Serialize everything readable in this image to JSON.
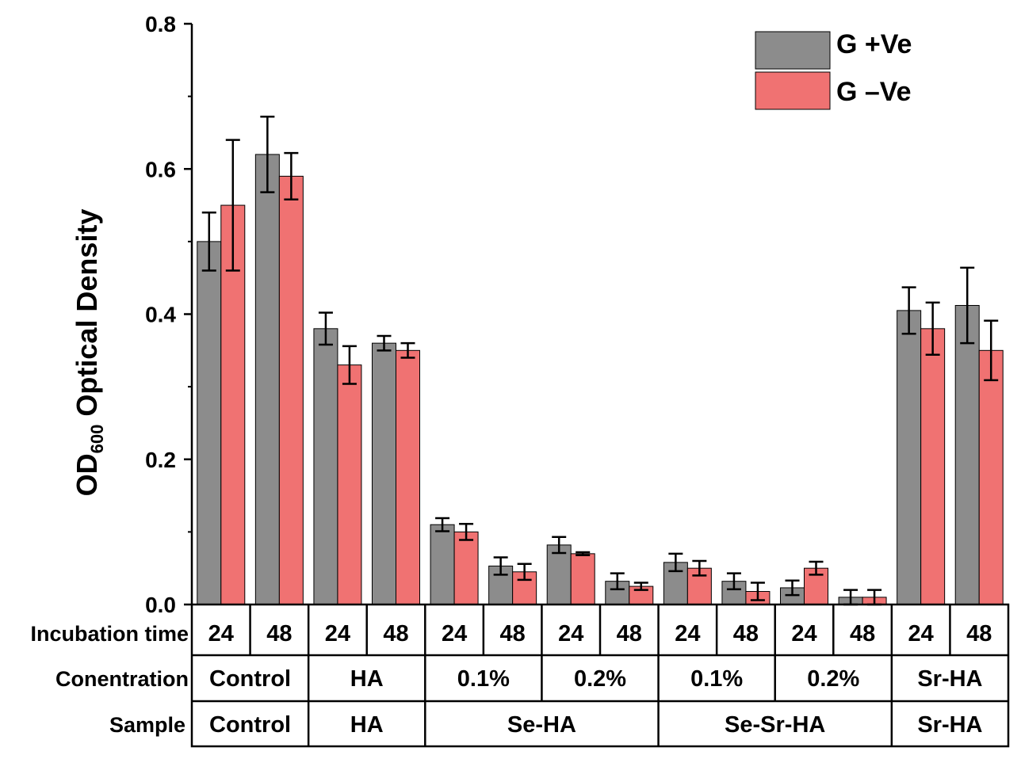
{
  "chart_data": {
    "type": "bar",
    "ylabel": "OD600 Optical Density",
    "ylabel_parts": {
      "main": "OD",
      "sub": "600",
      "rest": " Optical Density"
    },
    "ylim": [
      0,
      0.8
    ],
    "yticks": [
      "0.0",
      "0.2",
      "0.4",
      "0.6",
      "0.8"
    ],
    "categories": [
      "Control 24",
      "Control 48",
      "HA 24",
      "HA 48",
      "Se-HA 0.1% 24",
      "Se-HA 0.1% 48",
      "Se-HA 0.2% 24",
      "Se-HA 0.2% 48",
      "Se-Sr-HA 0.1% 24",
      "Se-Sr-HA 0.1% 48",
      "Se-Sr-HA 0.2% 24",
      "Se-Sr-HA 0.2% 48",
      "Sr-HA 24",
      "Sr-HA 48"
    ],
    "series": [
      {
        "name": "G +Ve",
        "color": "#8c8c8c",
        "values": [
          0.5,
          0.62,
          0.38,
          0.36,
          0.11,
          0.053,
          0.082,
          0.032,
          0.058,
          0.032,
          0.023,
          0.01,
          0.405,
          0.412
        ],
        "errors": [
          0.04,
          0.052,
          0.022,
          0.01,
          0.009,
          0.012,
          0.011,
          0.011,
          0.012,
          0.011,
          0.01,
          0.01,
          0.032,
          0.052
        ]
      },
      {
        "name": "G –Ve",
        "color": "#f07272",
        "values": [
          0.55,
          0.59,
          0.33,
          0.35,
          0.1,
          0.045,
          0.07,
          0.025,
          0.05,
          0.018,
          0.05,
          0.01,
          0.38,
          0.35
        ],
        "errors": [
          0.09,
          0.032,
          0.026,
          0.01,
          0.011,
          0.011,
          0.002,
          0.005,
          0.01,
          0.012,
          0.009,
          0.01,
          0.036,
          0.041
        ]
      }
    ],
    "legend_position": "top-right",
    "table": {
      "rows": [
        {
          "label": "Incubation time",
          "cells": [
            {
              "text": "24",
              "span": 1
            },
            {
              "text": "48",
              "span": 1
            },
            {
              "text": "24",
              "span": 1
            },
            {
              "text": "48",
              "span": 1
            },
            {
              "text": "24",
              "span": 1
            },
            {
              "text": "48",
              "span": 1
            },
            {
              "text": "24",
              "span": 1
            },
            {
              "text": "48",
              "span": 1
            },
            {
              "text": "24",
              "span": 1
            },
            {
              "text": "48",
              "span": 1
            },
            {
              "text": "24",
              "span": 1
            },
            {
              "text": "48",
              "span": 1
            },
            {
              "text": "24",
              "span": 1
            },
            {
              "text": "48",
              "span": 1
            }
          ]
        },
        {
          "label": "Conentration",
          "cells": [
            {
              "text": "Control",
              "span": 2
            },
            {
              "text": "HA",
              "span": 2
            },
            {
              "text": "0.1%",
              "span": 2
            },
            {
              "text": "0.2%",
              "span": 2
            },
            {
              "text": "0.1%",
              "span": 2
            },
            {
              "text": "0.2%",
              "span": 2
            },
            {
              "text": "Sr-HA",
              "span": 2
            }
          ]
        },
        {
          "label": "Sample",
          "cells": [
            {
              "text": "Control",
              "span": 2
            },
            {
              "text": "HA",
              "span": 2
            },
            {
              "text": "Se-HA",
              "span": 4
            },
            {
              "text": "Se-Sr-HA",
              "span": 4
            },
            {
              "text": "Sr-HA",
              "span": 2
            }
          ]
        }
      ]
    }
  }
}
